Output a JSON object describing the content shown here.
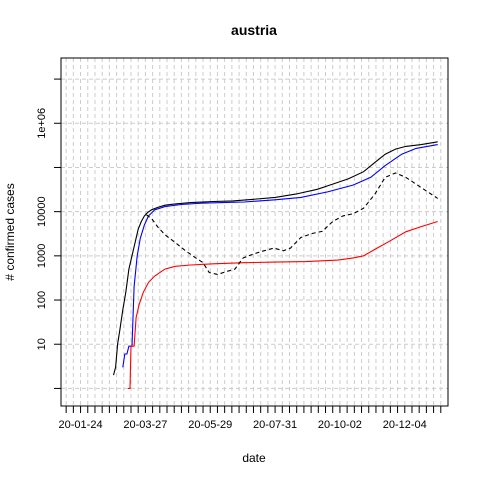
{
  "chart_data": {
    "type": "line",
    "title": "austria",
    "xlabel": "date",
    "ylabel": "# confirmed cases",
    "y_scale": "log10",
    "ylim": [
      0.4,
      30000000
    ],
    "xlim": [
      "2020-01-05",
      "2021-01-15"
    ],
    "grid": true,
    "x_tick_labels": [
      {
        "date": "2020-01-24",
        "label": "20-01-24"
      },
      {
        "date": "2020-03-27",
        "label": "20-03-27"
      },
      {
        "date": "2020-05-29",
        "label": "20-05-29"
      },
      {
        "date": "2020-07-31",
        "label": "20-07-31"
      },
      {
        "date": "2020-10-02",
        "label": "20-10-02"
      },
      {
        "date": "2020-12-04",
        "label": "20-12-04"
      }
    ],
    "y_ticks": [
      {
        "value": 10,
        "label": "10"
      },
      {
        "value": 100,
        "label": "100"
      },
      {
        "value": 1000,
        "label": "1000"
      },
      {
        "value": 10000,
        "label": "10000"
      },
      {
        "value": 1000000,
        "label": "1e+06"
      }
    ],
    "series": [
      {
        "color": "#000000",
        "dash": "solid",
        "points": [
          [
            "2020-02-25",
            2
          ],
          [
            "2020-02-27",
            3
          ],
          [
            "2020-02-29",
            10
          ],
          [
            "2020-03-02",
            20
          ],
          [
            "2020-03-05",
            60
          ],
          [
            "2020-03-08",
            150
          ],
          [
            "2020-03-11",
            500
          ],
          [
            "2020-03-14",
            1000
          ],
          [
            "2020-03-17",
            2000
          ],
          [
            "2020-03-20",
            4000
          ],
          [
            "2020-03-23",
            6000
          ],
          [
            "2020-03-26",
            8000
          ],
          [
            "2020-03-29",
            9500
          ],
          [
            "2020-04-02",
            11000
          ],
          [
            "2020-04-08",
            12500
          ],
          [
            "2020-04-15",
            14000
          ],
          [
            "2020-04-25",
            15000
          ],
          [
            "2020-05-10",
            16000
          ],
          [
            "2020-06-01",
            17000
          ],
          [
            "2020-06-20",
            17500
          ],
          [
            "2020-07-10",
            19000
          ],
          [
            "2020-07-31",
            21000
          ],
          [
            "2020-08-20",
            25000
          ],
          [
            "2020-09-10",
            32000
          ],
          [
            "2020-09-25",
            42000
          ],
          [
            "2020-10-10",
            55000
          ],
          [
            "2020-10-25",
            80000
          ],
          [
            "2020-11-05",
            130000
          ],
          [
            "2020-11-15",
            200000
          ],
          [
            "2020-11-25",
            260000
          ],
          [
            "2020-12-05",
            300000
          ],
          [
            "2020-12-20",
            330000
          ],
          [
            "2021-01-05",
            380000
          ]
        ]
      },
      {
        "color": "#0000ff",
        "dash": "solid",
        "points": [
          [
            "2020-03-05",
            3
          ],
          [
            "2020-03-07",
            6
          ],
          [
            "2020-03-09",
            6
          ],
          [
            "2020-03-11",
            9
          ],
          [
            "2020-03-14",
            9
          ],
          [
            "2020-03-16",
            200
          ],
          [
            "2020-03-19",
            1000
          ],
          [
            "2020-03-22",
            2500
          ],
          [
            "2020-03-26",
            5000
          ],
          [
            "2020-03-30",
            8000
          ],
          [
            "2020-04-05",
            11000
          ],
          [
            "2020-04-15",
            13000
          ],
          [
            "2020-05-01",
            14500
          ],
          [
            "2020-05-20",
            15500
          ],
          [
            "2020-06-10",
            16000
          ],
          [
            "2020-07-01",
            16500
          ],
          [
            "2020-07-31",
            18500
          ],
          [
            "2020-08-25",
            21000
          ],
          [
            "2020-09-20",
            28000
          ],
          [
            "2020-10-15",
            40000
          ],
          [
            "2020-11-01",
            60000
          ],
          [
            "2020-11-15",
            110000
          ],
          [
            "2020-12-01",
            200000
          ],
          [
            "2020-12-15",
            270000
          ],
          [
            "2021-01-05",
            330000
          ]
        ]
      },
      {
        "color": "#ff0000",
        "dash": "solid",
        "points": [
          [
            "2020-03-10",
            1
          ],
          [
            "2020-03-12",
            1
          ],
          [
            "2020-03-13",
            9
          ],
          [
            "2020-03-16",
            9
          ],
          [
            "2020-03-18",
            40
          ],
          [
            "2020-03-21",
            80
          ],
          [
            "2020-03-25",
            150
          ],
          [
            "2020-03-30",
            250
          ],
          [
            "2020-04-05",
            350
          ],
          [
            "2020-04-15",
            500
          ],
          [
            "2020-04-25",
            580
          ],
          [
            "2020-05-10",
            620
          ],
          [
            "2020-06-01",
            660
          ],
          [
            "2020-07-01",
            700
          ],
          [
            "2020-07-31",
            720
          ],
          [
            "2020-08-30",
            740
          ],
          [
            "2020-09-30",
            800
          ],
          [
            "2020-10-15",
            900
          ],
          [
            "2020-10-25",
            1000
          ],
          [
            "2020-11-05",
            1400
          ],
          [
            "2020-11-20",
            2200
          ],
          [
            "2020-12-05",
            3500
          ],
          [
            "2020-12-20",
            4600
          ],
          [
            "2021-01-05",
            6000
          ]
        ]
      },
      {
        "color": "#000000",
        "dash": "dashed",
        "points": [
          [
            "2020-03-28",
            8500
          ],
          [
            "2020-04-02",
            7000
          ],
          [
            "2020-04-08",
            4500
          ],
          [
            "2020-04-15",
            3000
          ],
          [
            "2020-04-25",
            2000
          ],
          [
            "2020-05-05",
            1300
          ],
          [
            "2020-05-15",
            900
          ],
          [
            "2020-05-22",
            700
          ],
          [
            "2020-05-28",
            420
          ],
          [
            "2020-06-05",
            380
          ],
          [
            "2020-06-15",
            450
          ],
          [
            "2020-06-22",
            500
          ],
          [
            "2020-06-30",
            900
          ],
          [
            "2020-07-10",
            1100
          ],
          [
            "2020-07-20",
            1300
          ],
          [
            "2020-07-30",
            1500
          ],
          [
            "2020-08-08",
            1300
          ],
          [
            "2020-08-15",
            1500
          ],
          [
            "2020-08-25",
            2600
          ],
          [
            "2020-09-05",
            3200
          ],
          [
            "2020-09-15",
            3600
          ],
          [
            "2020-09-25",
            6000
          ],
          [
            "2020-10-05",
            8000
          ],
          [
            "2020-10-15",
            9000
          ],
          [
            "2020-10-25",
            12000
          ],
          [
            "2020-11-05",
            25000
          ],
          [
            "2020-11-15",
            60000
          ],
          [
            "2020-11-25",
            75000
          ],
          [
            "2020-12-05",
            60000
          ],
          [
            "2020-12-20",
            35000
          ],
          [
            "2021-01-05",
            20000
          ]
        ]
      }
    ]
  }
}
